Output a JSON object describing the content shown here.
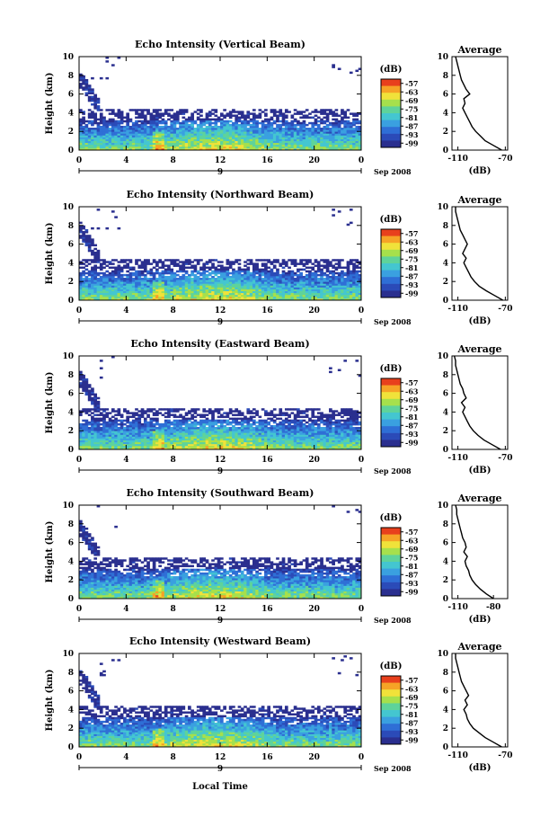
{
  "figure": {
    "x_axis_label": "Local Time",
    "date_label": "Sep 2008",
    "colorbar_unit": "(dB)",
    "colorbar_ticks": [
      "-57",
      "-63",
      "-69",
      "-75",
      "-81",
      "-87",
      "-93",
      "-99"
    ],
    "avg_title": "Average",
    "avg_xlabel": "(dB)",
    "height_label": "Height (km)"
  },
  "chart_data": [
    {
      "type": "heatmap",
      "title": "Echo Intensity (Vertical Beam)",
      "ylabel": "Height (km)",
      "xticks": [
        "0",
        "4",
        "8",
        "12",
        "16",
        "20",
        "0"
      ],
      "yticks": [
        "0",
        "2",
        "4",
        "6",
        "8",
        "10"
      ],
      "ylim": [
        0,
        10
      ],
      "xlim": [
        0,
        24
      ],
      "day_label": "9",
      "date_label": "Sep 2008",
      "colorbar": {
        "unit": "(dB)",
        "range": [
          -99,
          -57
        ],
        "ticks": [
          -57,
          -63,
          -69,
          -75,
          -81,
          -87,
          -93,
          -99
        ]
      },
      "average_profile": {
        "title": "Average",
        "xlabel": "(dB)",
        "xticks": [
          "-110",
          "-70"
        ],
        "yticks": [
          "0",
          "2",
          "4",
          "6",
          "8",
          "10"
        ],
        "height": [
          0,
          0.5,
          1,
          1.5,
          2,
          2.5,
          3,
          3.5,
          4,
          4.5,
          5,
          5.5,
          6,
          6.5,
          7,
          7.5,
          8,
          8.5,
          9,
          9.5,
          10
        ],
        "values": [
          -73,
          -80,
          -87,
          -91,
          -95,
          -98,
          -100,
          -102,
          -104,
          -106,
          -104,
          -105,
          -100,
          -103,
          -105,
          -107,
          -108,
          -109,
          -110,
          -111,
          -112
        ]
      }
    },
    {
      "type": "heatmap",
      "title": "Echo Intensity (Northward Beam)",
      "ylabel": "Height (km)",
      "xticks": [
        "0",
        "4",
        "8",
        "12",
        "16",
        "20",
        "0"
      ],
      "yticks": [
        "0",
        "2",
        "4",
        "6",
        "8",
        "10"
      ],
      "ylim": [
        0,
        10
      ],
      "xlim": [
        0,
        24
      ],
      "day_label": "9",
      "date_label": "Sep 2008",
      "colorbar": {
        "unit": "(dB)",
        "range": [
          -99,
          -57
        ],
        "ticks": [
          -57,
          -63,
          -69,
          -75,
          -81,
          -87,
          -93,
          -99
        ]
      },
      "average_profile": {
        "title": "Average",
        "xlabel": "(dB)",
        "xticks": [
          "-110",
          "-70"
        ],
        "yticks": [
          "0",
          "2",
          "4",
          "6",
          "8",
          "10"
        ],
        "height": [
          0,
          0.5,
          1,
          1.5,
          2,
          2.5,
          3,
          3.5,
          4,
          4.5,
          5,
          5.5,
          6,
          6.5,
          7,
          7.5,
          8,
          8.5,
          9,
          9.5,
          10
        ],
        "values": [
          -72,
          -79,
          -86,
          -92,
          -96,
          -99,
          -101,
          -103,
          -105,
          -103,
          -106,
          -104,
          -102,
          -104,
          -106,
          -108,
          -109,
          -110,
          -111,
          -112,
          -112
        ]
      }
    },
    {
      "type": "heatmap",
      "title": "Echo Intensity (Eastward Beam)",
      "ylabel": "Height (km)",
      "xticks": [
        "0",
        "4",
        "8",
        "12",
        "16",
        "20",
        "0"
      ],
      "yticks": [
        "0",
        "2",
        "4",
        "6",
        "8",
        "10"
      ],
      "ylim": [
        0,
        10
      ],
      "xlim": [
        0,
        24
      ],
      "day_label": "9",
      "date_label": "Sep 2008",
      "colorbar": {
        "unit": "(dB)",
        "range": [
          -99,
          -57
        ],
        "ticks": [
          -57,
          -63,
          -69,
          -75,
          -81,
          -87,
          -93,
          -99
        ]
      },
      "average_profile": {
        "title": "Average",
        "xlabel": "(dB)",
        "xticks": [
          "-110",
          "-70"
        ],
        "yticks": [
          "0",
          "2",
          "4",
          "6",
          "8",
          "10"
        ],
        "height": [
          0,
          0.5,
          1,
          1.5,
          2,
          2.5,
          3,
          3.5,
          4,
          4.5,
          5,
          5.5,
          6,
          6.5,
          7,
          7.5,
          8,
          8.5,
          9,
          9.5,
          10
        ],
        "values": [
          -74,
          -81,
          -88,
          -93,
          -97,
          -100,
          -102,
          -104,
          -106,
          -104,
          -107,
          -103,
          -105,
          -106,
          -108,
          -109,
          -110,
          -111,
          -112,
          -112,
          -113
        ]
      }
    },
    {
      "type": "heatmap",
      "title": "Echo Intensity (Southward Beam)",
      "ylabel": "Height (km)",
      "xticks": [
        "0",
        "4",
        "8",
        "12",
        "16",
        "20",
        "0"
      ],
      "yticks": [
        "0",
        "2",
        "4",
        "6",
        "8",
        "10"
      ],
      "ylim": [
        0,
        10
      ],
      "xlim": [
        0,
        24
      ],
      "day_label": "9",
      "date_label": "Sep 2008",
      "colorbar": {
        "unit": "(dB)",
        "range": [
          -99,
          -57
        ],
        "ticks": [
          -57,
          -63,
          -69,
          -75,
          -81,
          -87,
          -93,
          -99
        ]
      },
      "average_profile": {
        "title": "Average",
        "xlabel": "(dB)",
        "xticks": [
          "-110",
          "-80"
        ],
        "yticks": [
          "0",
          "2",
          "4",
          "6",
          "8",
          "10"
        ],
        "height": [
          0,
          0.5,
          1,
          1.5,
          2,
          2.5,
          3,
          3.5,
          4,
          4.5,
          5,
          5.5,
          6,
          6.5,
          7,
          7.5,
          8,
          8.5,
          9,
          9.5,
          10
        ],
        "values": [
          -80,
          -86,
          -91,
          -95,
          -98,
          -100,
          -101,
          -103,
          -104,
          -102,
          -105,
          -103,
          -104,
          -106,
          -107,
          -108,
          -109,
          -110,
          -111,
          -111,
          -112
        ]
      }
    },
    {
      "type": "heatmap",
      "title": "Echo Intensity (Westward Beam)",
      "ylabel": "Height (km)",
      "xticks": [
        "0",
        "4",
        "8",
        "12",
        "16",
        "20",
        "0"
      ],
      "yticks": [
        "0",
        "2",
        "4",
        "6",
        "8",
        "10"
      ],
      "ylim": [
        0,
        10
      ],
      "xlim": [
        0,
        24
      ],
      "day_label": "9",
      "date_label": "Sep 2008",
      "xlabel": "Local Time",
      "colorbar": {
        "unit": "(dB)",
        "range": [
          -99,
          -57
        ],
        "ticks": [
          -57,
          -63,
          -69,
          -75,
          -81,
          -87,
          -93,
          -99
        ]
      },
      "average_profile": {
        "title": "Average",
        "xlabel": "(dB)",
        "xticks": [
          "-110",
          "-70"
        ],
        "yticks": [
          "0",
          "2",
          "4",
          "6",
          "8",
          "10"
        ],
        "height": [
          0,
          0.5,
          1,
          1.5,
          2,
          2.5,
          3,
          3.5,
          4,
          4.5,
          5,
          5.5,
          6,
          6.5,
          7,
          7.5,
          8,
          8.5,
          9,
          9.5,
          10
        ],
        "values": [
          -73,
          -80,
          -87,
          -92,
          -97,
          -100,
          -102,
          -103,
          -105,
          -102,
          -104,
          -101,
          -103,
          -105,
          -107,
          -108,
          -109,
          -110,
          -111,
          -112,
          -112
        ]
      }
    }
  ]
}
